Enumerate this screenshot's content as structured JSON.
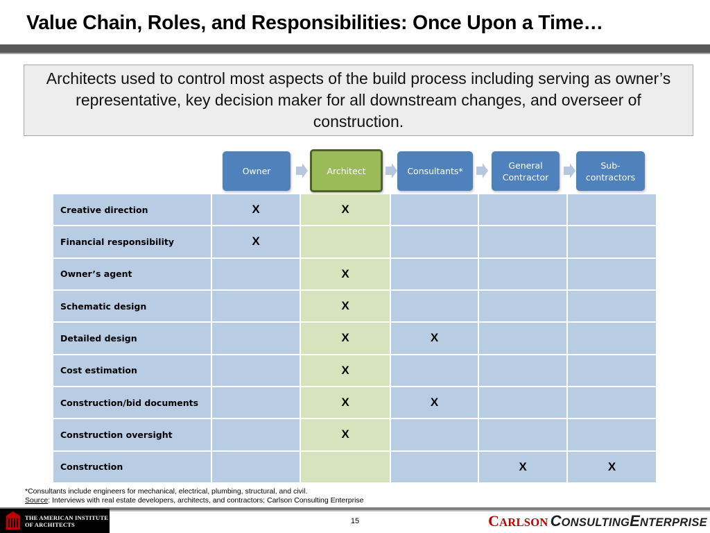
{
  "title": "Value Chain, Roles, and Responsibilities: Once Upon a Time…",
  "callout": "Architects used to control most aspects of the build process including serving as owner’s representative, key decision maker for all downstream changes, and overseer of construction.",
  "roles": [
    {
      "label": "Owner",
      "highlight": false
    },
    {
      "label": "Architect",
      "highlight": true
    },
    {
      "label": "Consultants*",
      "highlight": false
    },
    {
      "label": "General Contractor",
      "highlight": false
    },
    {
      "label": "Sub-contractors",
      "highlight": false
    }
  ],
  "responsibilities": [
    {
      "label": "Creative direction",
      "marks": [
        "X",
        "X",
        "",
        "",
        ""
      ]
    },
    {
      "label": "Financial responsibility",
      "marks": [
        "X",
        "",
        "",
        "",
        ""
      ]
    },
    {
      "label": "Owner’s agent",
      "marks": [
        "",
        "X",
        "",
        "",
        ""
      ]
    },
    {
      "label": "Schematic design",
      "marks": [
        "",
        "X",
        "",
        "",
        ""
      ]
    },
    {
      "label": "Detailed design",
      "marks": [
        "",
        "X",
        "X",
        "",
        ""
      ]
    },
    {
      "label": "Cost estimation",
      "marks": [
        "",
        "X",
        "",
        "",
        ""
      ]
    },
    {
      "label": "Construction/bid documents",
      "marks": [
        "",
        "X",
        "X",
        "",
        ""
      ]
    },
    {
      "label": "Construction oversight",
      "marks": [
        "",
        "X",
        "",
        "",
        ""
      ]
    },
    {
      "label": "Construction",
      "marks": [
        "",
        "",
        "",
        "X",
        "X"
      ]
    }
  ],
  "footnote": {
    "consultants": "*Consultants include engineers for mechanical, electrical, plumbing, structural, and civil.",
    "source_label": "Source",
    "source_text": ": Interviews with real estate developers, architects, and contractors; Carlson Consulting Enterprise"
  },
  "page_number": "15",
  "aia_logo": {
    "line1": "THE AMERICAN INSTITUTE",
    "line2": "OF ARCHITECTS"
  },
  "brand": {
    "c1": "C",
    "w1": "ARLSON",
    "c2": "C",
    "w2": "ONSULTING",
    "c3": "E",
    "w3": "NTERPRISE"
  },
  "colors": {
    "role_blue": "#4f81bd",
    "role_green": "#9bbb59",
    "cell_blue": "#b8cce4",
    "cell_green": "#d6e3bc",
    "brand_red": "#c00000"
  }
}
